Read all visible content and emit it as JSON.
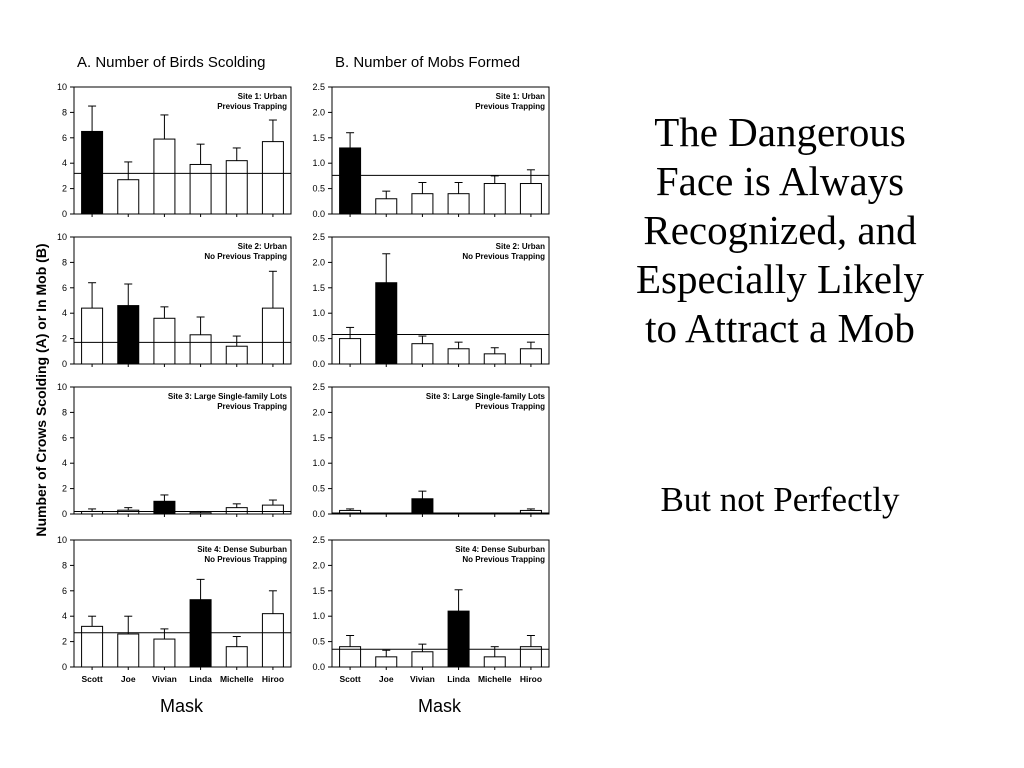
{
  "slide": {
    "title_lines": [
      "The Dangerous",
      "Face is Always",
      "Recognized, and",
      "Especially Likely",
      "to Attract a Mob"
    ],
    "subtitle": "But not Perfectly"
  },
  "figure": {
    "col_a_title": "A. Number of Birds Scolding",
    "col_b_title": "B. Number of Mobs Formed",
    "y_label": "Number of Crows Scolding (A) or In Mob (B)",
    "x_label": "Mask"
  },
  "colors": {
    "highlight_bar": "#000000",
    "normal_bar": "#ffffff"
  },
  "chart_data": [
    {
      "type": "bar",
      "panel": "A",
      "row": 1,
      "site_lines": [
        "Site 1: Urban",
        "Previous Trapping"
      ],
      "categories": [
        "Scott",
        "Joe",
        "Vivian",
        "Linda",
        "Michelle",
        "Hiroo"
      ],
      "values": [
        6.5,
        2.7,
        5.9,
        3.9,
        4.2,
        5.7
      ],
      "errors": [
        2.0,
        1.4,
        1.9,
        1.6,
        1.0,
        1.7
      ],
      "highlight": 0,
      "reference": 3.2,
      "ylim": [
        0,
        10
      ],
      "yticks": [
        "0",
        "2",
        "4",
        "6",
        "8",
        "10"
      ]
    },
    {
      "type": "bar",
      "panel": "A",
      "row": 2,
      "site_lines": [
        "Site 2: Urban",
        "No Previous Trapping"
      ],
      "categories": [
        "Scott",
        "Joe",
        "Vivian",
        "Linda",
        "Michelle",
        "Hiroo"
      ],
      "values": [
        4.4,
        4.6,
        3.6,
        2.3,
        1.4,
        4.4
      ],
      "errors": [
        2.0,
        1.7,
        0.9,
        1.4,
        0.8,
        2.9
      ],
      "highlight": 1,
      "reference": 1.7,
      "ylim": [
        0,
        10
      ],
      "yticks": [
        "0",
        "2",
        "4",
        "6",
        "8",
        "10"
      ]
    },
    {
      "type": "bar",
      "panel": "A",
      "row": 3,
      "site_lines": [
        "Site 3: Large Single-family Lots",
        "Previous Trapping"
      ],
      "categories": [
        "Scott",
        "Joe",
        "Vivian",
        "Linda",
        "Michelle",
        "Hiroo"
      ],
      "values": [
        0.2,
        0.3,
        1.0,
        0.1,
        0.5,
        0.7
      ],
      "errors": [
        0.2,
        0.2,
        0.5,
        0.1,
        0.3,
        0.4
      ],
      "highlight": 2,
      "reference": 0.2,
      "ylim": [
        0,
        10
      ],
      "yticks": [
        "0",
        "2",
        "4",
        "6",
        "8",
        "10"
      ]
    },
    {
      "type": "bar",
      "panel": "A",
      "row": 4,
      "site_lines": [
        "Site 4: Dense Suburban",
        "No Previous Trapping"
      ],
      "categories": [
        "Scott",
        "Joe",
        "Vivian",
        "Linda",
        "Michelle",
        "Hiroo"
      ],
      "values": [
        3.2,
        2.6,
        2.2,
        5.3,
        1.6,
        4.2
      ],
      "errors": [
        0.8,
        1.4,
        0.8,
        1.6,
        0.8,
        1.8
      ],
      "highlight": 3,
      "reference": 2.7,
      "ylim": [
        0,
        10
      ],
      "yticks": [
        "0",
        "2",
        "4",
        "6",
        "8",
        "10"
      ]
    },
    {
      "type": "bar",
      "panel": "B",
      "row": 1,
      "site_lines": [
        "Site 1: Urban",
        "Previous Trapping"
      ],
      "categories": [
        "Scott",
        "Joe",
        "Vivian",
        "Linda",
        "Michelle",
        "Hiroo"
      ],
      "values": [
        1.3,
        0.3,
        0.4,
        0.4,
        0.6,
        0.6
      ],
      "errors": [
        0.3,
        0.15,
        0.22,
        0.22,
        0.15,
        0.27
      ],
      "highlight": 0,
      "reference": 0.76,
      "ylim": [
        0,
        2.5
      ],
      "yticks": [
        "0.0",
        "0.5",
        "1.0",
        "1.5",
        "2.0",
        "2.5"
      ]
    },
    {
      "type": "bar",
      "panel": "B",
      "row": 2,
      "site_lines": [
        "Site 2: Urban",
        "No Previous Trapping"
      ],
      "categories": [
        "Scott",
        "Joe",
        "Vivian",
        "Linda",
        "Michelle",
        "Hiroo"
      ],
      "values": [
        0.5,
        1.6,
        0.4,
        0.3,
        0.2,
        0.3
      ],
      "errors": [
        0.22,
        0.57,
        0.15,
        0.13,
        0.12,
        0.13
      ],
      "highlight": 1,
      "reference": 0.58,
      "ylim": [
        0,
        2.5
      ],
      "yticks": [
        "0.0",
        "0.5",
        "1.0",
        "1.5",
        "2.0",
        "2.5"
      ]
    },
    {
      "type": "bar",
      "panel": "B",
      "row": 3,
      "site_lines": [
        "Site 3: Large Single-family Lots",
        "Previous Trapping"
      ],
      "categories": [
        "Scott",
        "Joe",
        "Vivian",
        "Linda",
        "Michelle",
        "Hiroo"
      ],
      "values": [
        0.07,
        0.0,
        0.3,
        0.0,
        0.01,
        0.07
      ],
      "errors": [
        0.03,
        0.0,
        0.15,
        0.0,
        0.01,
        0.03
      ],
      "highlight": 2,
      "reference": 0.02,
      "ylim": [
        0,
        2.5
      ],
      "yticks": [
        "0.0",
        "0.5",
        "1.0",
        "1.5",
        "2.0",
        "2.5"
      ]
    },
    {
      "type": "bar",
      "panel": "B",
      "row": 4,
      "site_lines": [
        "Site 4: Dense Suburban",
        "No Previous Trapping"
      ],
      "categories": [
        "Scott",
        "Joe",
        "Vivian",
        "Linda",
        "Michelle",
        "Hiroo"
      ],
      "values": [
        0.4,
        0.2,
        0.3,
        1.1,
        0.2,
        0.4
      ],
      "errors": [
        0.22,
        0.13,
        0.15,
        0.42,
        0.2,
        0.22
      ],
      "highlight": 3,
      "reference": 0.35,
      "ylim": [
        0,
        2.5
      ],
      "yticks": [
        "0.0",
        "0.5",
        "1.0",
        "1.5",
        "2.0",
        "2.5"
      ]
    }
  ]
}
